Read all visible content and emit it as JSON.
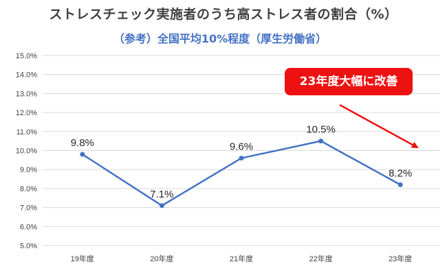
{
  "chart_data": {
    "type": "line",
    "title": "ストレスチェック実施者のうち高ストレス者の割合（%）",
    "subtitle": "（参考）全国平均10%程度（厚生労働省）",
    "categories": [
      "19年度",
      "20年度",
      "21年度",
      "22年度",
      "23年度"
    ],
    "series": [
      {
        "values": [
          9.8,
          7.1,
          9.6,
          10.5,
          8.2
        ],
        "data_labels": [
          "9.8%",
          "7.1%",
          "9.6%",
          "10.5%",
          "8.2%"
        ]
      }
    ],
    "ylim": [
      5.0,
      15.0
    ],
    "yticks": [
      "5.0%",
      "6.0%",
      "7.0%",
      "8.0%",
      "9.0%",
      "10.0%",
      "11.0%",
      "12.0%",
      "13.0%",
      "14.0%",
      "15.0%"
    ],
    "grid": true,
    "legend": "none",
    "annotation": "23年度大幅に改善",
    "colors": {
      "line": "#4472c4",
      "annotation": "#ee1111",
      "grid": "#d9d9d9"
    }
  }
}
